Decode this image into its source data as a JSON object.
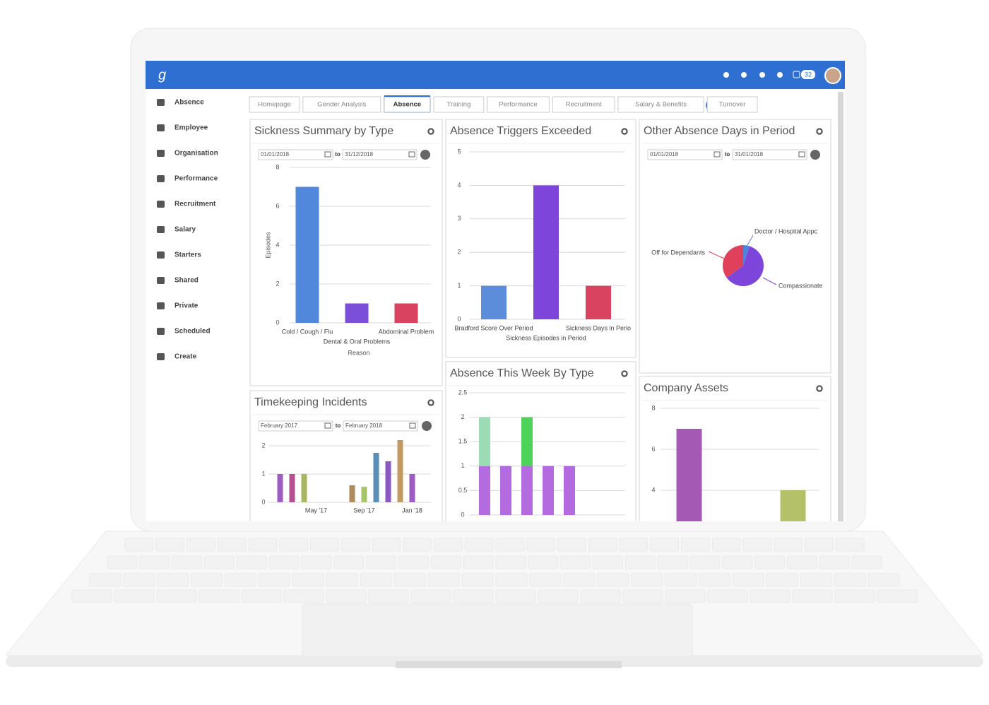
{
  "header": {
    "logo": "g",
    "notification_count": "32"
  },
  "sidebar": {
    "items": [
      "Absence",
      "Employee",
      "Organisation",
      "Performance",
      "Recruitment",
      "Salary",
      "Starters",
      "Shared",
      "Private",
      "Scheduled",
      "Create"
    ]
  },
  "tabs": {
    "items": [
      "Homepage",
      "Gender Analysis",
      "Absence",
      "Training",
      "Performance",
      "Recruitment",
      "Salary & Benefits",
      "Turnover"
    ],
    "active": "Absence"
  },
  "widgets": [
    {
      "title": "Sickness Summary by Type",
      "date_from": "01/01/2018",
      "to_label": "to",
      "date_to": "31/12/2018",
      "chart_data": {
        "type": "bar",
        "categories": [
          "Cold / Cough / Flu",
          "Dental & Oral Problems",
          "Abdominal Problem"
        ],
        "values": [
          7,
          1,
          1
        ],
        "colors": [
          "#5288dc",
          "#7b4fd8",
          "#d9435f"
        ],
        "ylim": [
          0,
          8
        ],
        "yticks": [
          0,
          2,
          4,
          6,
          8
        ],
        "ylabel": "Episodes",
        "xlabel": "Reason",
        "grid": true
      }
    },
    {
      "title": "Absence Triggers Exceeded",
      "chart_data": {
        "type": "bar",
        "categories": [
          "Bradford Score Over Period",
          "Sickness Episodes in Period",
          "Sickness Days in Perio"
        ],
        "values": [
          1,
          4,
          1
        ],
        "colors": [
          "#5b8ddb",
          "#7d45d9",
          "#d9435f"
        ],
        "ylim": [
          0,
          5
        ],
        "yticks": [
          0,
          1,
          2,
          3,
          4,
          5
        ],
        "grid": true
      }
    },
    {
      "title": "Other Absence Days in Period",
      "date_from": "01/01/2018",
      "to_label": "to",
      "date_to": "31/01/2018",
      "chart_data": {
        "type": "pie",
        "labels": [
          "Doctor / Hospital Appc",
          "Compassionate",
          "Off for Dependants"
        ],
        "values": [
          5,
          60,
          35
        ],
        "colors": [
          "#4c85d9",
          "#7d45d9",
          "#e0405a"
        ]
      }
    },
    {
      "title": "Timekeeping Incidents",
      "date_from": "February 2017",
      "to_label": "to",
      "date_to": "February 2018",
      "chart_data": {
        "type": "bar",
        "categories": [
          null,
          null,
          null,
          "May '17",
          null,
          null,
          null,
          "Sep '17",
          null,
          null,
          null,
          "Jan '18"
        ],
        "values": [
          1,
          1,
          1,
          0,
          0,
          0,
          0.6,
          0.55,
          1.75,
          1.45,
          2.2,
          1
        ],
        "colors": [
          "#9c5cc0",
          "#b44f91",
          "#a7b860",
          "#9c5cc0",
          "#9c5cc0",
          "#9c5cc0",
          "#b08a5a",
          "#a6c46a",
          "#5a8fb8",
          "#8a5ac0",
          "#c19a60",
          "#9c5cc0"
        ],
        "ylim": [
          0,
          2.25
        ],
        "yticks": [
          0,
          1,
          2
        ],
        "grid": true
      }
    },
    {
      "title": "Absence This Week By Type",
      "chart_data": {
        "type": "stacked-bar",
        "series": [
          {
            "color": "#b56be0",
            "values": [
              1,
              1,
              1,
              1,
              1
            ]
          },
          {
            "color": "#9bdcb5",
            "values": [
              1,
              0,
              0,
              0,
              0
            ]
          },
          {
            "color": "#4dd35a",
            "values": [
              0,
              0,
              1,
              0,
              0
            ]
          }
        ],
        "ylim": [
          0,
          2.5
        ],
        "yticks": [
          0,
          0.5,
          1,
          1.5,
          2,
          2.5
        ],
        "grid": true
      }
    },
    {
      "title": "Company Assets",
      "chart_data": {
        "type": "bar",
        "categories": [
          null,
          null
        ],
        "values": [
          7,
          4
        ],
        "colors": [
          "#a45ab5",
          "#b5c168"
        ],
        "ylim": [
          0,
          8.5
        ],
        "yticks": [
          4,
          6,
          8
        ],
        "grid": true
      }
    }
  ]
}
